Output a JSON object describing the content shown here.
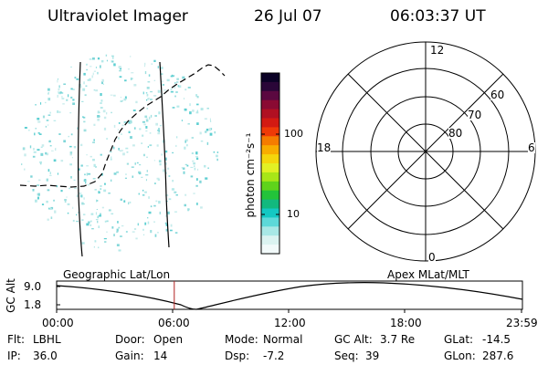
{
  "header": {
    "instrument": "Ultraviolet Imager",
    "date": "26 Jul 07",
    "time": "06:03:37 UT"
  },
  "colorbar": {
    "unit_label": "photon cm⁻²s⁻¹",
    "ticks": [
      "100",
      "10"
    ],
    "colors": [
      "#0b0226",
      "#2a0638",
      "#5b0840",
      "#8a0a33",
      "#b01022",
      "#d31a12",
      "#ef3a07",
      "#f57c00",
      "#f8ad00",
      "#f4d60c",
      "#e2f024",
      "#a8e618",
      "#5fd31b",
      "#23c33a",
      "#12b97e",
      "#14c8c3",
      "#5dd9d9",
      "#a8e8e6",
      "#dbf3f1",
      "#f2fafa"
    ],
    "tick_colors": {
      "100": "#ef3a07",
      "10": "#5dd9d9"
    }
  },
  "polar_plot": {
    "mlt_labels": {
      "top": "12",
      "left": "18",
      "right": "6",
      "bottom": "0"
    },
    "lat_labels": [
      "60",
      "70",
      "80"
    ]
  },
  "timeline": {
    "ylabel": "GC Alt",
    "y_ticks": [
      "9.0",
      "1.8"
    ],
    "left_caption": "Geographic Lat/Lon",
    "right_caption": "Apex MLat/MLT",
    "x_ticks": [
      "00:00",
      "06:00",
      "12:00",
      "18:00",
      "23:59"
    ],
    "current_time_fraction": 0.2525,
    "marker_color": "#b22222"
  },
  "info": {
    "flt_label": "Flt:",
    "flt": "LBHL",
    "ip_label": "IP:",
    "ip": "36.0",
    "door_label": "Door:",
    "door": "Open",
    "gain_label": "Gain:",
    "gain": "14",
    "mode_label": "Mode:",
    "mode": "Normal",
    "dsp_label": "Dsp:",
    "dsp": "-7.2",
    "gcalt_label": "GC Alt:",
    "gcalt": "3.7 Re",
    "seq_label": "Seq:",
    "seq": "39",
    "glat_label": "GLat:",
    "glat": "-14.5",
    "glon_label": "GLon:",
    "glon": "287.6"
  }
}
